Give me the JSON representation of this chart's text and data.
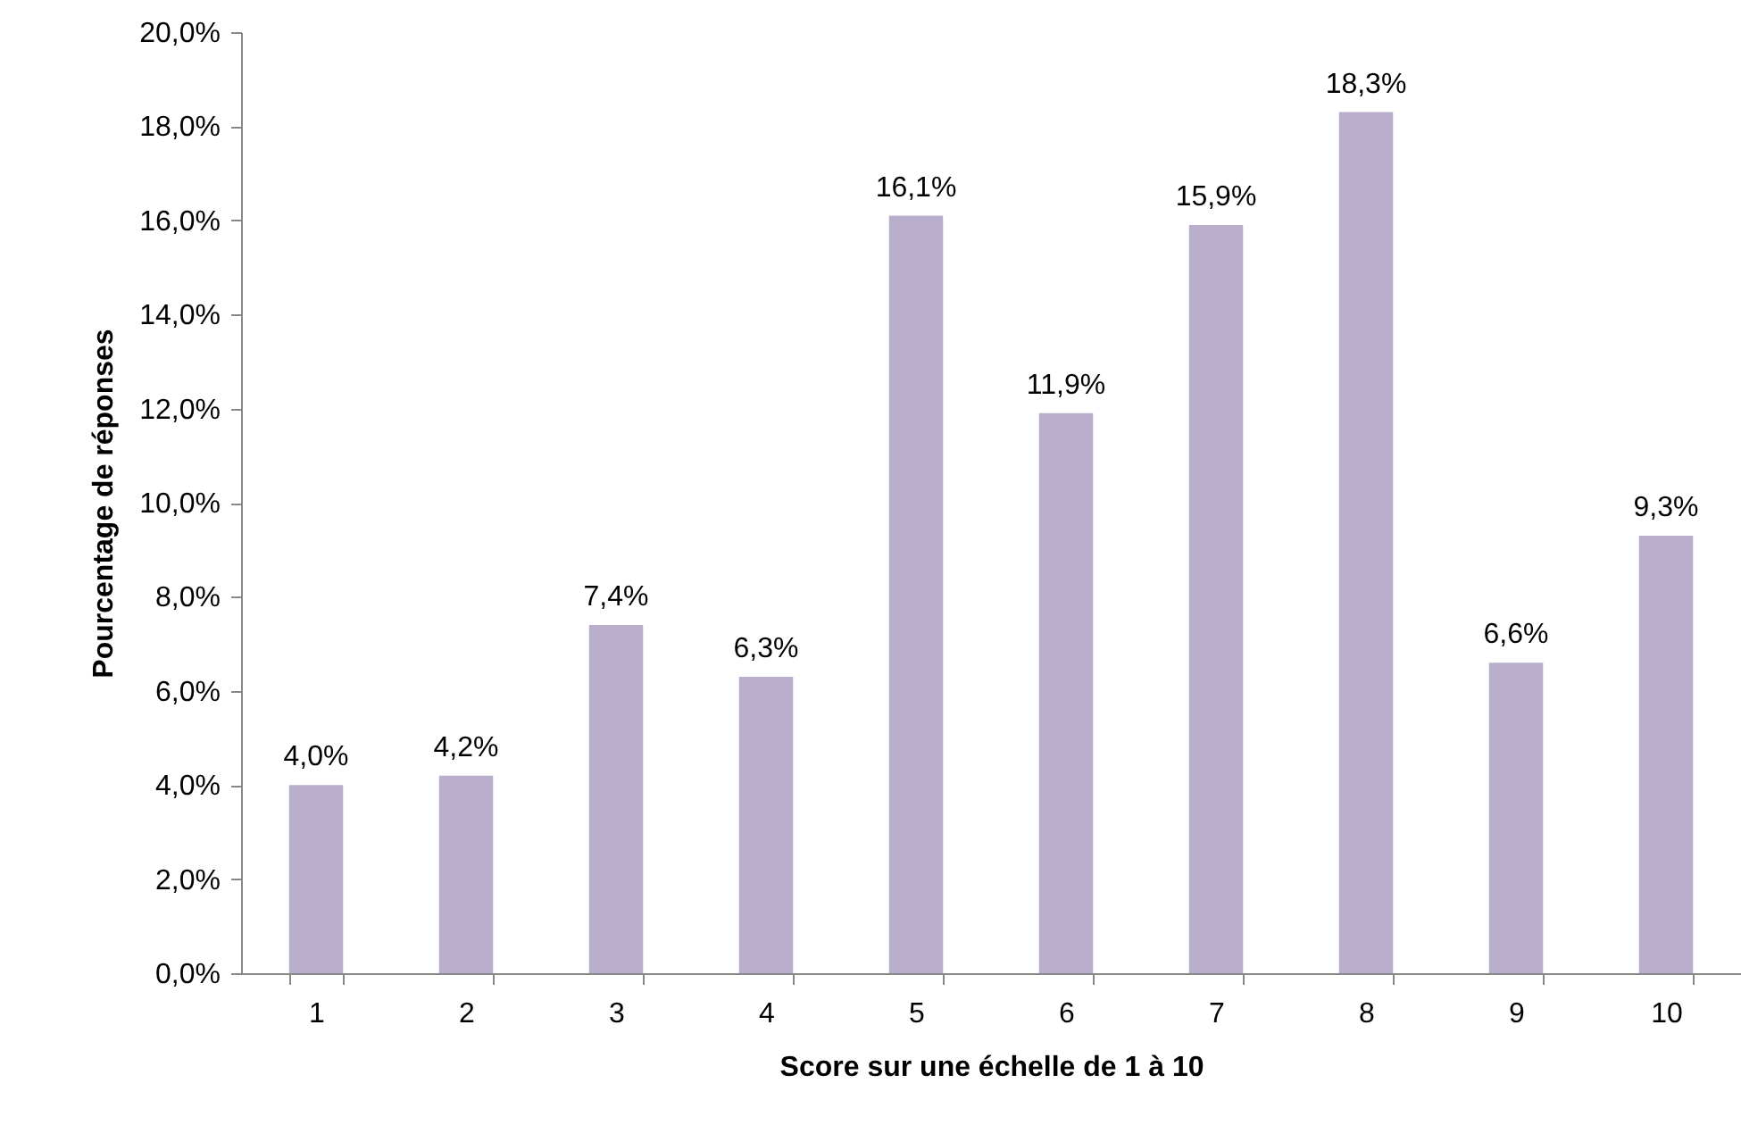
{
  "chart_data": {
    "type": "bar",
    "xlabel": "Score sur une échelle de 1 à 10",
    "ylabel": "Pourcentage de réponses",
    "categories": [
      "1",
      "2",
      "3",
      "4",
      "5",
      "6",
      "7",
      "8",
      "9",
      "10"
    ],
    "values": [
      4.0,
      4.2,
      7.4,
      6.3,
      16.1,
      11.9,
      15.9,
      18.3,
      6.6,
      9.3
    ],
    "value_labels": [
      "4,0%",
      "4,2%",
      "7,4%",
      "6,3%",
      "16,1%",
      "11,9%",
      "15,9%",
      "18,3%",
      "6,6%",
      "9,3%"
    ],
    "color": "#b9aecb",
    "ylim": [
      0,
      20
    ],
    "yticks": [
      {
        "value": 0,
        "label": "0,0%"
      },
      {
        "value": 2,
        "label": "2,0%"
      },
      {
        "value": 4,
        "label": "4,0%"
      },
      {
        "value": 6,
        "label": "6,0%"
      },
      {
        "value": 8,
        "label": "8,0%"
      },
      {
        "value": 10,
        "label": "10,0%"
      },
      {
        "value": 12,
        "label": "12,0%"
      },
      {
        "value": 14,
        "label": "14,0%"
      },
      {
        "value": 16,
        "label": "16,0%"
      },
      {
        "value": 18,
        "label": "18,0%"
      },
      {
        "value": 20,
        "label": "20,0%"
      }
    ],
    "grid": false
  }
}
